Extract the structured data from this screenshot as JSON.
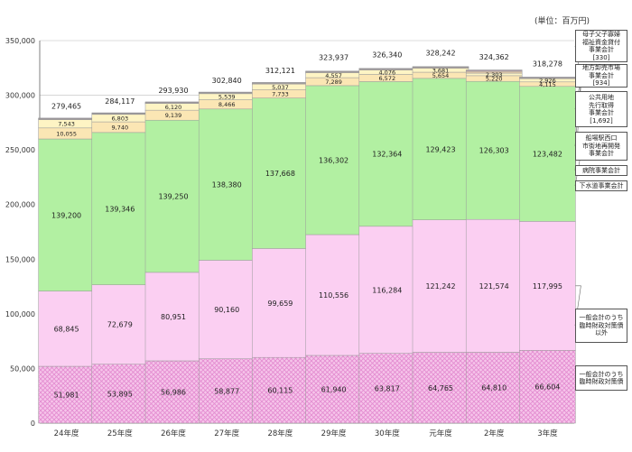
{
  "chart_data": {
    "type": "bar",
    "stacked": true,
    "unit_label": "(単位：百万円)",
    "categories": [
      "24年度",
      "25年度",
      "26年度",
      "27年度",
      "28年度",
      "29年度",
      "30年度",
      "元年度",
      "2年度",
      "3年度"
    ],
    "ylim": [
      0,
      350000
    ],
    "yticks": [
      "0",
      "50,000",
      "100,000",
      "150,000",
      "200,000",
      "250,000",
      "300,000",
      "350,000"
    ],
    "grid": true,
    "series": [
      {
        "name": "一般会計のうち\n臨時財政対策債",
        "color": "#f6c4ea",
        "values": [
          51981,
          53895,
          56986,
          58877,
          60115,
          61940,
          63817,
          64765,
          64810,
          66604
        ],
        "labels": [
          "51,981",
          "53,895",
          "56,986",
          "58,877",
          "60,115",
          "61,940",
          "63,817",
          "64,765",
          "64,810",
          "66,604"
        ]
      },
      {
        "name": "一般会計のうち\n臨時財政対策債\n以外",
        "color": "#fbcff2",
        "values": [
          68845,
          72679,
          80951,
          90160,
          99659,
          110556,
          116284,
          121242,
          121574,
          117995
        ],
        "labels": [
          "68,845",
          "72,679",
          "80,951",
          "90,160",
          "99,659",
          "110,556",
          "116,284",
          "121,242",
          "121,574",
          "117,995"
        ]
      },
      {
        "name": "下水道事業会計",
        "color": "#b2f0a2",
        "values": [
          139200,
          139346,
          139250,
          138380,
          137668,
          136302,
          132364,
          129423,
          126303,
          123482
        ],
        "labels": [
          "139,200",
          "139,346",
          "139,250",
          "138,380",
          "137,668",
          "136,302",
          "132,364",
          "129,423",
          "126,303",
          "123,482"
        ]
      },
      {
        "name": "病院事業会計",
        "color": "#fbe6b4",
        "values": [
          10055,
          9740,
          9139,
          8466,
          7733,
          7289,
          6572,
          5654,
          5220,
          4115
        ],
        "labels": [
          "10,055",
          "9,740",
          "9,139",
          "8,466",
          "7,733",
          "7,289",
          "6,572",
          "5,654",
          "5,220",
          "4,115"
        ]
      },
      {
        "name": "船場駅西口\n市街地再開発\n事業会計",
        "color": "#fef4c4",
        "values": [
          7543,
          6803,
          6120,
          5539,
          5037,
          4557,
          4076,
          3681,
          2303,
          2926
        ],
        "labels": [
          "7,543",
          "6,803",
          "6,120",
          "5,539",
          "5,037",
          "4,557",
          "4,076",
          "3,681",
          "2,303",
          "2,926"
        ]
      },
      {
        "name": "公共用地\n先行取得\n事業会計\n[1,692]",
        "color": "#e2c8a8",
        "values": [
          500,
          500,
          500,
          500,
          500,
          500,
          500,
          500,
          1692,
          500
        ],
        "labels": []
      },
      {
        "name": "地方卸売市場\n事業会計\n[934]",
        "color": "#c8a0b8",
        "values": [
          500,
          500,
          500,
          500,
          500,
          500,
          500,
          500,
          934,
          500
        ],
        "labels": []
      },
      {
        "name": "母子父子寡婦\n福祉資金貸付\n事業会計\n[330]",
        "color": "#7f6a80",
        "values": [
          500,
          500,
          500,
          500,
          500,
          500,
          500,
          500,
          330,
          500
        ],
        "labels": []
      }
    ],
    "totals": [
      279465,
      284117,
      293930,
      302840,
      312121,
      323937,
      326340,
      328242,
      324362,
      318278
    ],
    "total_labels": [
      "279,465",
      "284,117",
      "293,930",
      "302,840",
      "312,121",
      "323,937",
      "326,340",
      "328,242",
      "324,362",
      "318,278"
    ]
  },
  "legend": {
    "boshi": "母子父子寡婦\n福祉資金貸付\n事業会計\n[330]",
    "ichiba": "地方卸売市場\n事業会計\n[934]",
    "kokyo": "公共用地\n先行取得\n事業会計\n[1,692]",
    "senba": "船場駅西口\n市街地再開発\n事業会計",
    "byoin": "病院事業会計",
    "gesui": "下水道事業会計",
    "ippan_igai": "一般会計のうち\n臨時財政対策債\n以外",
    "ippan_rinji": "一般会計のうち\n臨時財政対策債"
  },
  "colors": {
    "grid": "#d0d0d0",
    "axis": "#808080",
    "bar_edge": "#9a9a9a",
    "connector": "#a0a0a0",
    "hatch": "#e38bd0"
  }
}
